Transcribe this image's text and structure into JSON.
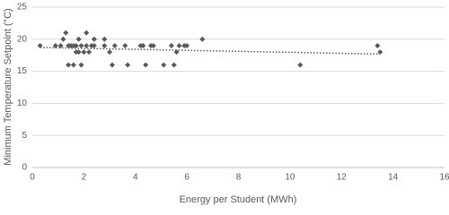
{
  "chart_data": {
    "type": "scatter",
    "x_label": "Energy per Student (MWh)",
    "y_label": "Minimum Temperature Setpoint (°C)",
    "x": [
      0.3,
      0.9,
      1.1,
      1.2,
      1.3,
      1.4,
      1.4,
      1.5,
      1.6,
      1.6,
      1.7,
      1.7,
      1.8,
      1.8,
      1.9,
      1.9,
      2.0,
      2.1,
      2.1,
      2.2,
      2.3,
      2.4,
      2.4,
      2.8,
      2.8,
      3.0,
      3.1,
      3.2,
      3.6,
      3.7,
      4.2,
      4.3,
      4.4,
      4.6,
      4.7,
      5.1,
      5.4,
      5.5,
      5.6,
      5.7,
      5.9,
      6.0,
      6.6,
      10.4,
      13.4,
      13.5
    ],
    "values": [
      19,
      19,
      19,
      20,
      21,
      19,
      16,
      19,
      19,
      16,
      18,
      19,
      20,
      18,
      16,
      19,
      18,
      21,
      19,
      18,
      19,
      20,
      19,
      20,
      19,
      18,
      16,
      19,
      19,
      16,
      19,
      19,
      16,
      19,
      19,
      16,
      19,
      16,
      18,
      19,
      19,
      19,
      20,
      16,
      19,
      18
    ],
    "color": "#595959",
    "trendline": "linear",
    "xlim": [
      0,
      16
    ],
    "xticks": [
      0,
      2,
      4,
      6,
      8,
      10,
      12,
      14,
      16
    ],
    "ylim": [
      0,
      25
    ],
    "yticks": [
      0,
      5,
      10,
      15,
      20,
      25
    ],
    "grid": true
  }
}
